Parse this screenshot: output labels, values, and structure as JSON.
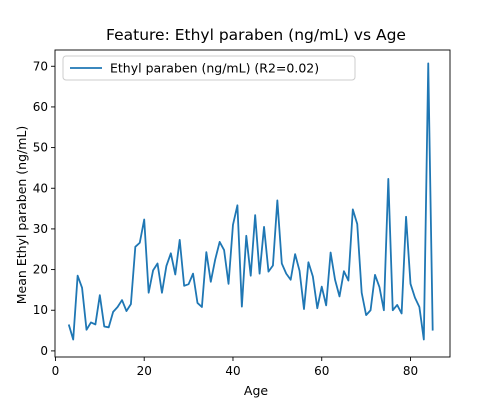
{
  "chart_data": {
    "type": "line",
    "title": "Feature: Ethyl paraben (ng/mL) vs Age",
    "xlabel": "Age",
    "ylabel": "Mean Ethyl paraben (ng/mL)",
    "xlim": [
      -0.1,
      88.9
    ],
    "ylim": [
      -1.5,
      74
    ],
    "xticks": [
      0,
      20,
      40,
      60,
      80
    ],
    "yticks": [
      0,
      10,
      20,
      30,
      40,
      50,
      60,
      70
    ],
    "grid": false,
    "legend_position": "top-left",
    "series": [
      {
        "name": "Ethyl paraben (ng/mL) (R2=0.02)",
        "color": "#1f77b4",
        "x": [
          3,
          4,
          5,
          6,
          7,
          8,
          9,
          10,
          11,
          12,
          13,
          14,
          15,
          16,
          17,
          18,
          19,
          20,
          21,
          22,
          23,
          24,
          25,
          26,
          27,
          28,
          29,
          30,
          31,
          32,
          33,
          34,
          35,
          36,
          37,
          38,
          39,
          40,
          41,
          42,
          43,
          44,
          45,
          46,
          47,
          48,
          49,
          50,
          51,
          52,
          53,
          54,
          55,
          56,
          57,
          58,
          59,
          60,
          61,
          62,
          63,
          64,
          65,
          66,
          67,
          68,
          69,
          70,
          71,
          72,
          73,
          74,
          75,
          76,
          77,
          78,
          79,
          80,
          81,
          82,
          83,
          84,
          85
        ],
        "y": [
          6.5,
          2.8,
          18.5,
          15.5,
          5.2,
          7.0,
          6.5,
          13.7,
          6.0,
          5.8,
          9.6,
          10.8,
          12.5,
          9.8,
          11.5,
          25.6,
          26.6,
          32.3,
          14.3,
          19.8,
          21.5,
          14.3,
          20.9,
          24.0,
          18.8,
          27.3,
          16.0,
          16.4,
          19.0,
          11.8,
          10.8,
          24.3,
          17.0,
          22.5,
          26.8,
          24.8,
          16.5,
          31.0,
          35.8,
          10.9,
          28.3,
          18.5,
          33.4,
          19.0,
          30.5,
          19.5,
          21.0,
          37.0,
          21.5,
          19.0,
          17.5,
          23.8,
          19.7,
          10.3,
          21.8,
          18.3,
          10.5,
          15.8,
          11.2,
          24.2,
          17.5,
          13.4,
          19.6,
          17.3,
          34.8,
          31.2,
          14.3,
          8.8,
          10.0,
          18.7,
          15.7,
          10.0,
          42.3,
          10.0,
          11.3,
          9.2,
          33.0,
          16.5,
          13.1,
          10.8,
          2.8,
          70.7,
          5.0
        ]
      }
    ]
  }
}
